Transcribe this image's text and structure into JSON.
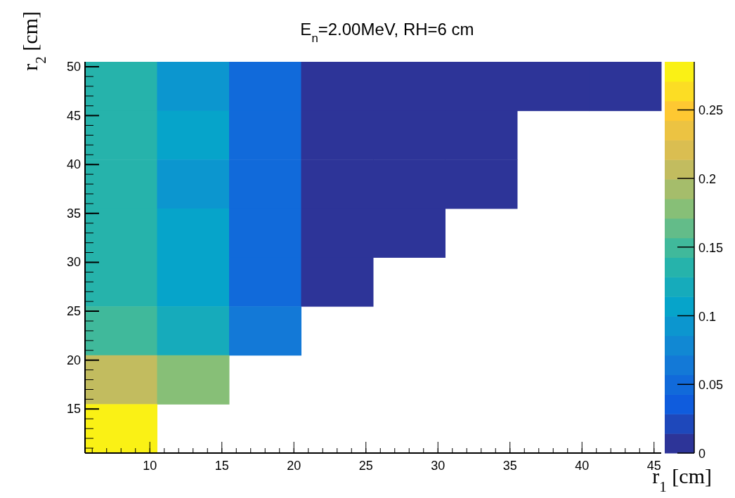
{
  "chart_data": {
    "type": "heatmap",
    "title": "E$_{n}$=2.00MeV, RH=6 cm",
    "xlabel": "r$_{1}$ [cm]",
    "ylabel": "r$_{2}$ [cm]",
    "xlim": [
      5.5,
      45.5
    ],
    "xticks": [
      10,
      15,
      20,
      25,
      30,
      35,
      40,
      45
    ],
    "ylim": [
      10.5,
      50.5
    ],
    "yticks": [
      15,
      20,
      25,
      30,
      35,
      40,
      45,
      50
    ],
    "cells": [
      [
        0.135,
        0.093,
        0.05,
        0.007,
        0.007,
        0.007,
        0.007,
        0.007
      ],
      [
        0.135,
        0.107,
        0.05,
        0.007,
        0.007,
        0.007,
        null,
        null
      ],
      [
        0.135,
        0.093,
        0.05,
        0.007,
        0.007,
        0.007,
        null,
        null
      ],
      [
        0.135,
        0.107,
        0.05,
        0.007,
        0.007,
        null,
        null,
        null
      ],
      [
        0.135,
        0.107,
        0.05,
        0.007,
        null,
        null,
        null,
        null
      ],
      [
        0.15,
        0.121,
        0.064,
        null,
        null,
        null,
        null,
        null
      ],
      [
        0.207,
        0.178,
        null,
        null,
        null,
        null,
        null,
        null
      ],
      [
        0.278,
        null,
        null,
        null,
        null,
        null,
        null,
        null
      ]
    ],
    "clim": [
      0,
      0.285
    ],
    "cticks": [
      0,
      0.05,
      0.1,
      0.15,
      0.2,
      0.25
    ]
  }
}
